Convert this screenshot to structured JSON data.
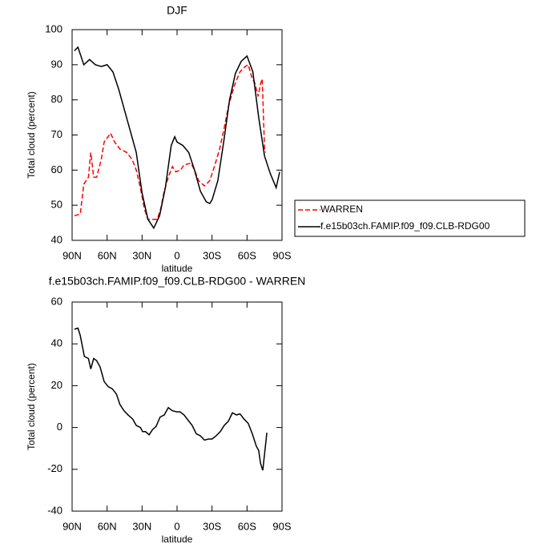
{
  "chart_data": [
    {
      "type": "line",
      "title": "DJF",
      "xlabel": "latitude",
      "ylabel": "Total cloud (percent)",
      "xlim": [
        90,
        -90
      ],
      "xticks": [
        {
          "value": 90,
          "label": "90N"
        },
        {
          "value": 60,
          "label": "60N"
        },
        {
          "value": 30,
          "label": "30N"
        },
        0,
        {
          "value": -30,
          "label": "30S"
        },
        {
          "value": -60,
          "label": "60S"
        },
        {
          "value": -90,
          "label": "90S"
        }
      ],
      "ylim": [
        40,
        100
      ],
      "yticks": [
        40,
        50,
        60,
        70,
        80,
        90,
        100
      ],
      "legend": "right",
      "series": [
        {
          "name": "WARREN",
          "color": "#ff0000",
          "dashed": true,
          "x": [
            88,
            83,
            80,
            76,
            74,
            71.5,
            69,
            65,
            62.5,
            57,
            53.5,
            49,
            43,
            38.5,
            35,
            31.5,
            28,
            25,
            21,
            17,
            14,
            11,
            7.5,
            4,
            1,
            -3,
            -6,
            -12,
            -15,
            -18.5,
            -23.5,
            -28,
            -32,
            -36.5,
            -40.5,
            -44,
            -49,
            -54,
            -58.5,
            -61,
            -64.5,
            -66.5,
            -69.5,
            -71.5,
            -73,
            -75,
            -76
          ],
          "values": [
            47,
            47.5,
            56,
            58,
            65,
            58,
            58,
            63,
            68,
            70.5,
            68,
            66,
            65,
            63,
            60,
            55,
            49,
            46,
            46,
            46,
            49,
            54,
            58,
            61,
            59.5,
            60,
            61.5,
            62,
            60,
            57,
            55.5,
            57,
            61,
            66,
            72,
            78,
            84,
            88,
            89.5,
            90,
            86,
            85,
            81,
            84.5,
            86,
            66,
            65
          ]
        },
        {
          "name": "f.e15b03ch.FAMIP.f09_f09.CLB-RDG00",
          "color": "#000000",
          "dashed": false,
          "x": [
            88,
            85,
            80,
            75,
            70,
            65,
            60,
            55,
            50,
            45,
            40,
            35,
            30,
            25,
            20,
            15,
            10,
            5,
            2,
            0,
            -5,
            -10,
            -15,
            -20,
            -25,
            -28,
            -30,
            -35,
            -40,
            -45,
            -50,
            -55,
            -60,
            -65,
            -70,
            -75,
            -80,
            -85,
            -88
          ],
          "values": [
            94,
            95,
            90,
            91.5,
            90,
            89.5,
            90,
            88,
            83,
            77,
            71,
            65,
            53.5,
            46,
            43.5,
            47,
            55,
            67,
            69.5,
            68,
            67,
            65,
            60,
            54,
            51,
            50.5,
            51.5,
            57,
            68,
            80,
            87.5,
            91,
            92.5,
            88,
            75,
            64,
            59,
            55,
            59.5
          ]
        }
      ]
    },
    {
      "type": "line",
      "title": "f.e15b03ch.FAMIP.f09_f09.CLB-RDG00 - WARREN",
      "xlabel": "latitude",
      "ylabel": "Total cloud (percent)",
      "xlim": [
        90,
        -90
      ],
      "xticks": [
        {
          "value": 90,
          "label": "90N"
        },
        {
          "value": 60,
          "label": "60N"
        },
        {
          "value": 30,
          "label": "30N"
        },
        0,
        {
          "value": -30,
          "label": "30S"
        },
        {
          "value": -60,
          "label": "60S"
        },
        {
          "value": -90,
          "label": "90S"
        }
      ],
      "ylim": [
        -40,
        60
      ],
      "yticks": [
        -40,
        -20,
        0,
        20,
        40,
        60
      ],
      "series": [
        {
          "color": "#000000",
          "dashed": false,
          "x": [
            88,
            85,
            83,
            79.5,
            76,
            74,
            71.5,
            69,
            66,
            62.5,
            59,
            55.5,
            52,
            49,
            45.5,
            42,
            38,
            35,
            31.5,
            29.5,
            27,
            24,
            21,
            18,
            14.5,
            11,
            7.5,
            4,
            0.5,
            -2.5,
            -6,
            -9.5,
            -13,
            -16.5,
            -20,
            -23.5,
            -27,
            -30,
            -33.5,
            -37,
            -40.5,
            -44,
            -47.5,
            -51,
            -54,
            -57.5,
            -61,
            -64.5,
            -68,
            -70,
            -71.5,
            -73.5,
            -77
          ],
          "values": [
            47,
            47.5,
            44,
            34,
            33,
            28,
            33,
            32,
            29,
            22,
            19.5,
            18.5,
            16,
            11,
            8,
            6,
            4,
            1,
            0,
            -2,
            -2,
            -3.5,
            -1,
            0.5,
            5,
            6,
            9.5,
            8,
            7.5,
            7.5,
            6,
            3.5,
            1,
            -3,
            -4,
            -6,
            -5.5,
            -5.5,
            -4,
            -2,
            1,
            3,
            7,
            6,
            6.5,
            4,
            2,
            -3,
            -9,
            -11,
            -17,
            -20.5,
            -2.5
          ]
        }
      ]
    }
  ]
}
